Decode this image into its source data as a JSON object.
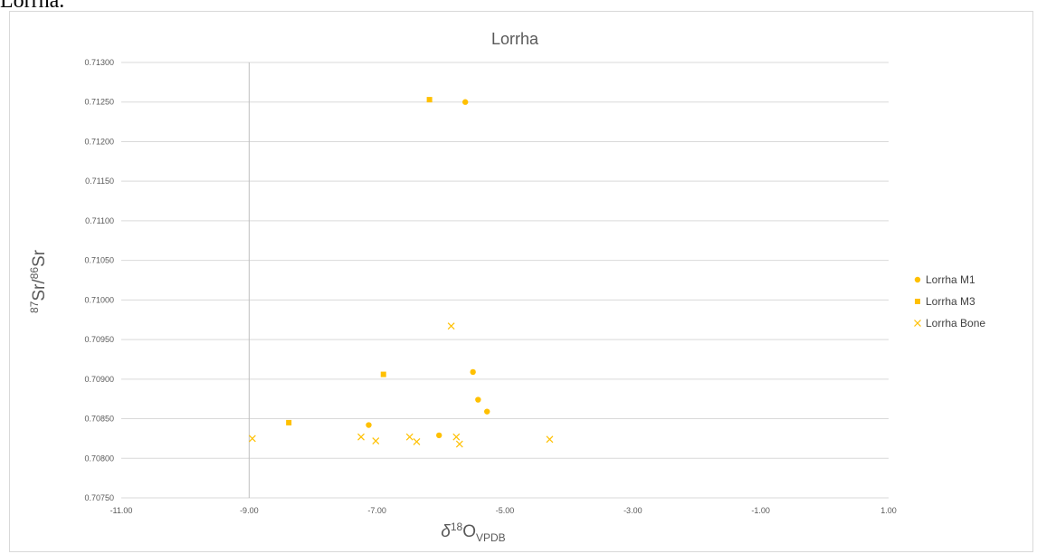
{
  "caption": "Lorrha.",
  "chart_data": {
    "type": "scatter",
    "title": "Lorrha",
    "xlabel": {
      "base": "δ",
      "sup": "18",
      "main": "O",
      "sub": "VPDB"
    },
    "ylabel": {
      "sup1": "87",
      "main1": "Sr/",
      "sup2": "86",
      "main2": "Sr"
    },
    "xlim": [
      -11,
      1
    ],
    "ylim": [
      0.7075,
      0.713
    ],
    "x_ticks": [
      -11,
      -9,
      -7,
      -5,
      -3,
      -1,
      1
    ],
    "x_tick_labels": [
      "-11.00",
      "-9.00",
      "-7.00",
      "-5.00",
      "-3.00",
      "-1.00",
      "1.00"
    ],
    "y_ticks": [
      0.7075,
      0.708,
      0.7085,
      0.709,
      0.7095,
      0.71,
      0.7105,
      0.711,
      0.7115,
      0.712,
      0.7125,
      0.713
    ],
    "y_tick_labels": [
      "0.70750",
      "0.70800",
      "0.70850",
      "0.70900",
      "0.70950",
      "0.71000",
      "0.71050",
      "0.71100",
      "0.71150",
      "0.71200",
      "0.71250",
      "0.71300"
    ],
    "grid": true,
    "legend_position": "right",
    "marker_color": "#FFC000",
    "series": [
      {
        "name": "Lorrha M1",
        "marker": "circle",
        "points": [
          [
            -5.62,
            0.7125
          ],
          [
            -5.5,
            0.70909
          ],
          [
            -5.42,
            0.70874
          ],
          [
            -5.28,
            0.70859
          ],
          [
            -7.13,
            0.70842
          ],
          [
            -6.03,
            0.70829
          ]
        ]
      },
      {
        "name": "Lorrha M3",
        "marker": "square",
        "points": [
          [
            -6.18,
            0.71253
          ],
          [
            -6.9,
            0.70906
          ],
          [
            -8.38,
            0.70845
          ]
        ]
      },
      {
        "name": "Lorrha Bone",
        "marker": "x",
        "points": [
          [
            -5.84,
            0.70967
          ],
          [
            -8.95,
            0.70825
          ],
          [
            -7.25,
            0.70827
          ],
          [
            -7.02,
            0.70822
          ],
          [
            -6.49,
            0.70827
          ],
          [
            -6.38,
            0.70821
          ],
          [
            -5.76,
            0.70827
          ],
          [
            -5.71,
            0.70818
          ],
          [
            -4.3,
            0.70824
          ]
        ]
      }
    ]
  }
}
